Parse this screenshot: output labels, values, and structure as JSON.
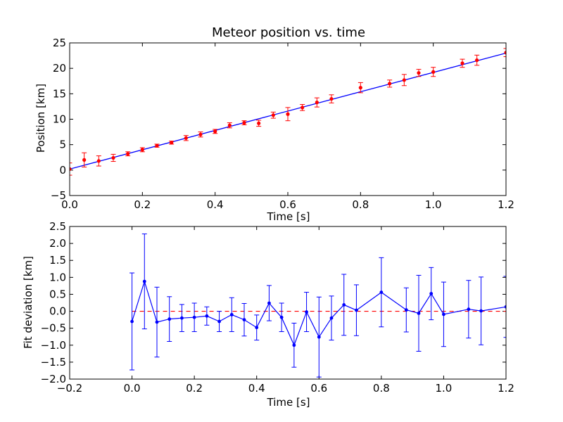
{
  "chart_data": [
    {
      "type": "scatter",
      "title": "Meteor position vs. time",
      "xlabel": "Time [s]",
      "ylabel": "Position [km]",
      "xlim": [
        0.0,
        1.2
      ],
      "ylim": [
        -5,
        25
      ],
      "xticks": [
        "0.0",
        "0.2",
        "0.4",
        "0.6",
        "0.8",
        "1.0",
        "1.2"
      ],
      "yticks": [
        "-5",
        "0",
        "5",
        "10",
        "15",
        "20",
        "25"
      ],
      "grid": false,
      "colors": {
        "points": "#ff0000",
        "fit": "#0000ff"
      },
      "series": [
        {
          "kind": "points_with_errorbars",
          "points": [
            {
              "x": 0.0,
              "y": 0.2,
              "err": 1.2
            },
            {
              "x": 0.04,
              "y": 2.0,
              "err": 1.4
            },
            {
              "x": 0.08,
              "y": 1.8,
              "err": 1.0
            },
            {
              "x": 0.12,
              "y": 2.4,
              "err": 0.7
            },
            {
              "x": 0.16,
              "y": 3.2,
              "err": 0.4
            },
            {
              "x": 0.2,
              "y": 4.0,
              "err": 0.4
            },
            {
              "x": 0.24,
              "y": 4.8,
              "err": 0.3
            },
            {
              "x": 0.28,
              "y": 5.4,
              "err": 0.3
            },
            {
              "x": 0.32,
              "y": 6.3,
              "err": 0.5
            },
            {
              "x": 0.36,
              "y": 7.0,
              "err": 0.5
            },
            {
              "x": 0.4,
              "y": 7.6,
              "err": 0.4
            },
            {
              "x": 0.44,
              "y": 8.8,
              "err": 0.5
            },
            {
              "x": 0.48,
              "y": 9.3,
              "err": 0.4
            },
            {
              "x": 0.52,
              "y": 9.2,
              "err": 0.6
            },
            {
              "x": 0.56,
              "y": 10.8,
              "err": 0.6
            },
            {
              "x": 0.6,
              "y": 11.0,
              "err": 1.3
            },
            {
              "x": 0.64,
              "y": 12.3,
              "err": 0.6
            },
            {
              "x": 0.68,
              "y": 13.3,
              "err": 0.9
            },
            {
              "x": 0.72,
              "y": 14.0,
              "err": 0.8
            },
            {
              "x": 0.8,
              "y": 16.2,
              "err": 1.0
            },
            {
              "x": 0.88,
              "y": 17.0,
              "err": 0.7
            },
            {
              "x": 0.92,
              "y": 17.7,
              "err": 1.1
            },
            {
              "x": 0.96,
              "y": 19.1,
              "err": 0.7
            },
            {
              "x": 1.0,
              "y": 19.3,
              "err": 0.9
            },
            {
              "x": 1.08,
              "y": 21.0,
              "err": 0.8
            },
            {
              "x": 1.12,
              "y": 21.6,
              "err": 1.0
            },
            {
              "x": 1.2,
              "y": 23.1,
              "err": 0.8
            }
          ]
        },
        {
          "kind": "fit_line",
          "x": [
            0.0,
            1.2
          ],
          "y": [
            0.2,
            23.0
          ]
        }
      ]
    },
    {
      "type": "line",
      "title": "",
      "xlabel": "Time [s]",
      "ylabel": "Fit deviation [km]",
      "xlim": [
        -0.2,
        1.2
      ],
      "ylim": [
        -2.0,
        2.5
      ],
      "xticks": [
        "-0.2",
        "0.0",
        "0.2",
        "0.4",
        "0.6",
        "0.8",
        "1.0",
        "1.2"
      ],
      "yticks": [
        "-2.0",
        "-1.5",
        "-1.0",
        "-0.5",
        "0.0",
        "0.5",
        "1.0",
        "1.5",
        "2.0",
        "2.5"
      ],
      "grid": false,
      "colors": {
        "line": "#0000ff",
        "zero": "#ff0000"
      },
      "zero_line": 0.0,
      "series": [
        {
          "points": [
            {
              "x": 0.0,
              "y": -0.3,
              "err": 1.43
            },
            {
              "x": 0.04,
              "y": 0.88,
              "err": 1.4
            },
            {
              "x": 0.08,
              "y": -0.32,
              "err": 1.03
            },
            {
              "x": 0.12,
              "y": -0.23,
              "err": 0.66
            },
            {
              "x": 0.16,
              "y": -0.2,
              "err": 0.4
            },
            {
              "x": 0.2,
              "y": -0.18,
              "err": 0.42
            },
            {
              "x": 0.24,
              "y": -0.14,
              "err": 0.27
            },
            {
              "x": 0.28,
              "y": -0.3,
              "err": 0.3
            },
            {
              "x": 0.32,
              "y": -0.1,
              "err": 0.5
            },
            {
              "x": 0.36,
              "y": -0.25,
              "err": 0.48
            },
            {
              "x": 0.4,
              "y": -0.48,
              "err": 0.37
            },
            {
              "x": 0.44,
              "y": 0.24,
              "err": 0.52
            },
            {
              "x": 0.48,
              "y": -0.18,
              "err": 0.42
            },
            {
              "x": 0.52,
              "y": -1.0,
              "err": 0.65
            },
            {
              "x": 0.56,
              "y": -0.02,
              "err": 0.58
            },
            {
              "x": 0.6,
              "y": -0.76,
              "err": 1.18
            },
            {
              "x": 0.64,
              "y": -0.2,
              "err": 0.65
            },
            {
              "x": 0.68,
              "y": 0.19,
              "err": 0.9
            },
            {
              "x": 0.72,
              "y": 0.03,
              "err": 0.75
            },
            {
              "x": 0.8,
              "y": 0.56,
              "err": 1.02
            },
            {
              "x": 0.88,
              "y": 0.04,
              "err": 0.65
            },
            {
              "x": 0.92,
              "y": -0.06,
              "err": 1.12
            },
            {
              "x": 0.96,
              "y": 0.52,
              "err": 0.77
            },
            {
              "x": 1.0,
              "y": -0.09,
              "err": 0.95
            },
            {
              "x": 1.08,
              "y": 0.06,
              "err": 0.85
            },
            {
              "x": 1.12,
              "y": 0.01,
              "err": 1.0
            },
            {
              "x": 1.2,
              "y": 0.13,
              "err": 0.9
            }
          ]
        }
      ]
    }
  ]
}
